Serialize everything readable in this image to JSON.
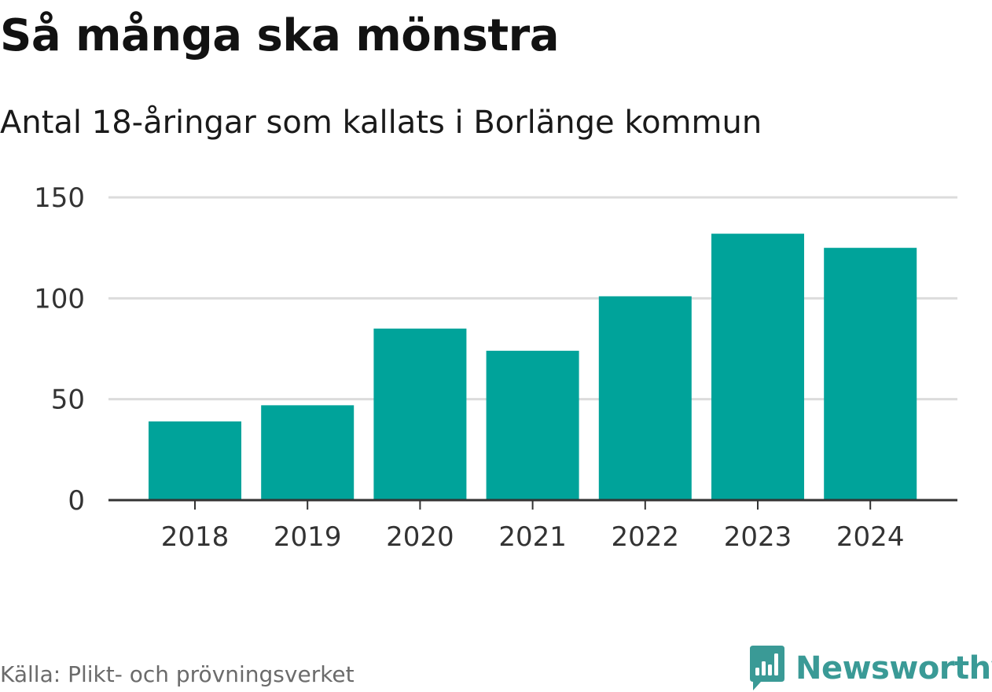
{
  "colors": {
    "bar": "#00a39a",
    "grid": "#dcdcdc",
    "axis": "#333333",
    "brand": "#3a9a96"
  },
  "chart_data": {
    "type": "bar",
    "title": "Så många ska mönstra",
    "subtitle": "Antal 18-åringar som kallats i Borlänge kommun",
    "categories": [
      "2018",
      "2019",
      "2020",
      "2021",
      "2022",
      "2023",
      "2024"
    ],
    "values": [
      39,
      47,
      85,
      74,
      101,
      132,
      125
    ],
    "xlabel": "",
    "ylabel": "",
    "ylim": [
      0,
      150
    ],
    "yticks": [
      0,
      50,
      100,
      150
    ],
    "grid": true,
    "legend": "none"
  },
  "footer": {
    "source": "Källa: Plikt- och prövningsverket",
    "brand": "Newsworthy"
  },
  "icons": {
    "logo": "newsworthy-logo-icon"
  }
}
